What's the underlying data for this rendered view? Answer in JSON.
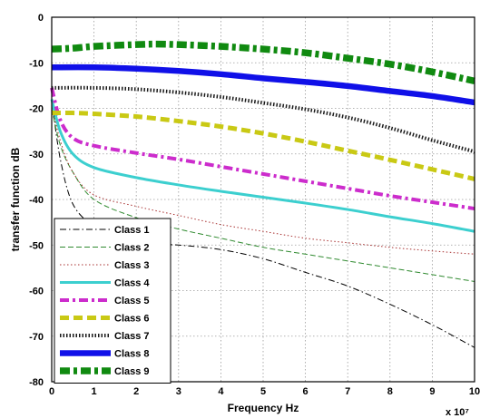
{
  "chart_data": {
    "type": "line",
    "xlabel": "Frequency Hz",
    "ylabel": "transfer function dB",
    "x_multiplier_label": "x 10⁷",
    "xlim": [
      0,
      10
    ],
    "ylim": [
      -80,
      0
    ],
    "x_ticks": [
      "0",
      "1",
      "2",
      "3",
      "4",
      "5",
      "6",
      "7",
      "8",
      "9",
      "10"
    ],
    "y_ticks": [
      "0",
      "-10",
      "-20",
      "-30",
      "-40",
      "-50",
      "-60",
      "-70",
      "-80"
    ],
    "grid": true,
    "legend_position": "bottom-left",
    "series": [
      {
        "name": "Class 1",
        "color": "#000000",
        "style": "dashdot-thin",
        "x": [
          0,
          0.2,
          0.5,
          1,
          1.5,
          2,
          2.5,
          3,
          4,
          5,
          6,
          7,
          8,
          9,
          10
        ],
        "y": [
          -18,
          -31,
          -41,
          -46,
          -48.5,
          -49.8,
          -50,
          -50,
          -51,
          -53,
          -56,
          -59,
          -63,
          -67.5,
          -72.5
        ]
      },
      {
        "name": "Class 2",
        "color": "#2f8a2f",
        "style": "dashed-thin",
        "x": [
          0,
          0.2,
          0.5,
          1,
          2,
          3,
          4,
          5,
          6,
          7,
          8,
          9,
          10
        ],
        "y": [
          -20,
          -28,
          -34,
          -40,
          -44,
          -46.5,
          -48.5,
          -50.5,
          -52,
          -53.5,
          -55,
          -56.5,
          -58
        ]
      },
      {
        "name": "Class 3",
        "color": "#a83030",
        "style": "dotted-thin",
        "x": [
          0,
          0.2,
          0.5,
          1,
          2,
          3,
          4,
          5,
          6,
          7,
          8,
          9,
          10
        ],
        "y": [
          -19,
          -27,
          -34,
          -39,
          -41.5,
          -43.5,
          -45.5,
          -47,
          -48.5,
          -49.5,
          -50.5,
          -51.3,
          -52
        ]
      },
      {
        "name": "Class 4",
        "color": "#3ccfcf",
        "style": "solid",
        "x": [
          0,
          0.2,
          0.5,
          1,
          2,
          3,
          4,
          5,
          6,
          7,
          8,
          9,
          10
        ],
        "y": [
          -18,
          -25,
          -30,
          -33,
          -35.2,
          -36.8,
          -38.2,
          -39.5,
          -40.8,
          -42.2,
          -43.8,
          -45.3,
          -47
        ]
      },
      {
        "name": "Class 5",
        "color": "#cc2ccc",
        "style": "dashdot-thick",
        "x": [
          0,
          0.2,
          0.5,
          1,
          2,
          3,
          4,
          5,
          6,
          7,
          8,
          9,
          10
        ],
        "y": [
          -15.5,
          -22.5,
          -26.5,
          -28.2,
          -29.8,
          -31.2,
          -32.8,
          -34.4,
          -36,
          -37.6,
          -39.2,
          -40.6,
          -42
        ]
      },
      {
        "name": "Class 6",
        "color": "#c9c914",
        "style": "dashed-thick",
        "x": [
          0,
          0.5,
          1,
          2,
          3,
          4,
          5,
          6,
          7,
          8,
          9,
          10
        ],
        "y": [
          -21,
          -21,
          -21.2,
          -21.8,
          -22.8,
          -24,
          -25.5,
          -27.3,
          -29.3,
          -31.3,
          -33.4,
          -35.5
        ]
      },
      {
        "name": "Class 7",
        "color": "#1a1a1a",
        "style": "dotted-thick",
        "x": [
          0,
          1,
          2,
          3,
          4,
          5,
          6,
          7,
          8,
          9,
          10
        ],
        "y": [
          -15.5,
          -15.5,
          -15.8,
          -16.5,
          -17.5,
          -18.8,
          -20.2,
          -22,
          -24.3,
          -27,
          -29.5
        ]
      },
      {
        "name": "Class 8",
        "color": "#1010e8",
        "style": "solid-thick",
        "x": [
          0,
          1,
          2,
          3,
          4,
          5,
          6,
          7,
          8,
          9,
          10
        ],
        "y": [
          -11,
          -11,
          -11.3,
          -11.8,
          -12.5,
          -13.4,
          -14.2,
          -15.1,
          -16.2,
          -17.3,
          -18.7
        ]
      },
      {
        "name": "Class 9",
        "color": "#108a10",
        "style": "dashdot-xthick",
        "x": [
          0,
          0.5,
          1,
          2,
          2.5,
          3,
          4,
          5,
          6,
          7,
          8,
          9,
          10
        ],
        "y": [
          -7,
          -6.8,
          -6.4,
          -6,
          -5.9,
          -6,
          -6.4,
          -7,
          -7.8,
          -9,
          -10.3,
          -12,
          -14
        ]
      }
    ]
  }
}
